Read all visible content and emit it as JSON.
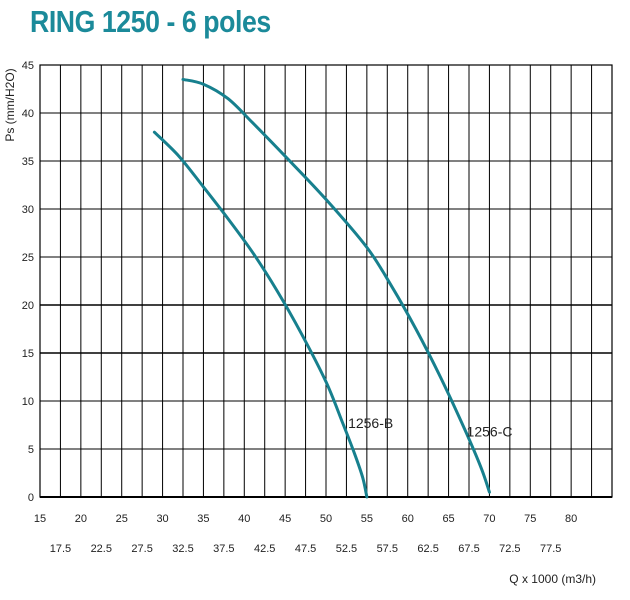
{
  "chart_data": {
    "type": "line",
    "title": "RING 1250 - 6 poles",
    "xlabel": "Q x 1000 (m3/h)",
    "ylabel": "Ps (mm/H2O)",
    "xlim": [
      15,
      85
    ],
    "ylim": [
      0,
      45
    ],
    "x_ticks_major": [
      15,
      20,
      25,
      30,
      35,
      40,
      45,
      50,
      55,
      60,
      65,
      70,
      75,
      80
    ],
    "x_ticks_minor": [
      17.5,
      22.5,
      27.5,
      32.5,
      37.5,
      42.5,
      47.5,
      52.5,
      57.5,
      62.5,
      67.5,
      72.5,
      77.5
    ],
    "y_ticks": [
      0,
      5,
      10,
      15,
      20,
      25,
      30,
      35,
      40,
      45
    ],
    "grid": true,
    "series": [
      {
        "name": "1256-B",
        "x": [
          29,
          32,
          35,
          38,
          41,
          44,
          47,
          50,
          52,
          53.5,
          54.5,
          55
        ],
        "y": [
          38,
          35.5,
          32.3,
          29,
          25.5,
          21.5,
          17,
          12,
          7.8,
          4.5,
          2,
          0
        ]
      },
      {
        "name": "1256-C",
        "x": [
          32.5,
          35,
          38,
          41,
          45,
          50,
          55,
          58,
          61,
          64,
          67,
          69,
          70
        ],
        "y": [
          43.5,
          43,
          41.5,
          39,
          35.5,
          31,
          26,
          22,
          17.5,
          12.5,
          7,
          3,
          0.5
        ]
      }
    ]
  }
}
